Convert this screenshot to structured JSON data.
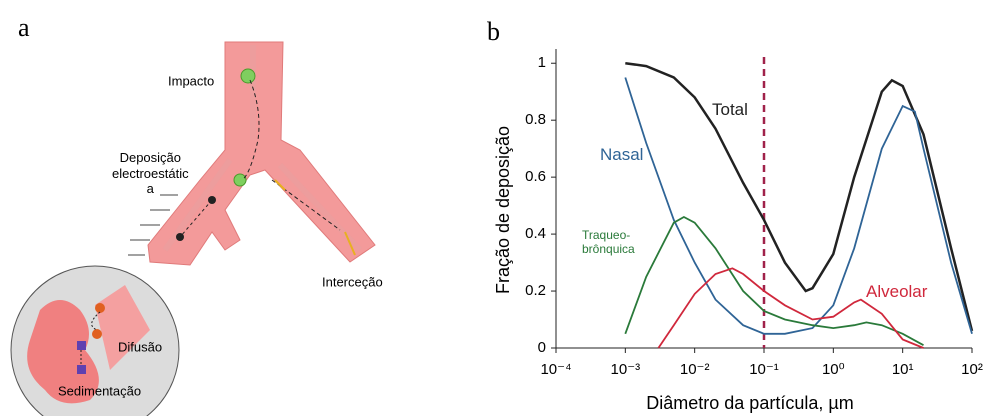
{
  "panel_a": {
    "letter": "a",
    "labels": [
      "Impacto",
      "Deposição\nelectroestátic\na",
      "Interceção",
      "Difusão",
      "Sedimentação"
    ]
  },
  "chart_data": {
    "type": "line",
    "letter": "b",
    "x_label": "Diâmetro da partícula, µm",
    "y_label": "Fração de deposição",
    "x_scale": "log",
    "xlim": [
      0.0001,
      100
    ],
    "ylim": [
      0,
      1.05
    ],
    "xticks": [
      {
        "value": 0.0001,
        "label": "10⁻⁴"
      },
      {
        "value": 0.001,
        "label": "10⁻³"
      },
      {
        "value": 0.01,
        "label": "10⁻²"
      },
      {
        "value": 0.1,
        "label": "10⁻¹"
      },
      {
        "value": 1,
        "label": "10⁰"
      },
      {
        "value": 10,
        "label": "10¹"
      },
      {
        "value": 100,
        "label": "10²"
      }
    ],
    "yticks": [
      0,
      0.2,
      0.4,
      0.6,
      0.8,
      1
    ],
    "vline": 0.1,
    "vline_color": "#a0224a",
    "series": [
      {
        "name": "Total",
        "color": "#222222",
        "x": [
          0.001,
          0.002,
          0.005,
          0.01,
          0.02,
          0.05,
          0.1,
          0.2,
          0.4,
          0.5,
          1,
          2,
          5,
          7,
          10,
          20,
          50,
          100
        ],
        "values": [
          1.0,
          0.99,
          0.95,
          0.88,
          0.77,
          0.58,
          0.45,
          0.3,
          0.2,
          0.21,
          0.33,
          0.6,
          0.9,
          0.94,
          0.92,
          0.75,
          0.35,
          0.06
        ]
      },
      {
        "name": "Nasal",
        "color": "#2f6496",
        "x": [
          0.001,
          0.002,
          0.005,
          0.01,
          0.02,
          0.05,
          0.1,
          0.2,
          0.5,
          1,
          2,
          5,
          10,
          15,
          20,
          50,
          100
        ],
        "values": [
          0.95,
          0.72,
          0.45,
          0.3,
          0.17,
          0.08,
          0.05,
          0.05,
          0.07,
          0.15,
          0.35,
          0.7,
          0.85,
          0.83,
          0.7,
          0.3,
          0.05
        ]
      },
      {
        "name": "Traqueo-\nbrônquica",
        "color": "#2a7a3a",
        "x": [
          0.001,
          0.002,
          0.005,
          0.007,
          0.01,
          0.02,
          0.05,
          0.1,
          0.2,
          0.5,
          1,
          2,
          3,
          5,
          10,
          20
        ],
        "values": [
          0.05,
          0.25,
          0.44,
          0.46,
          0.44,
          0.35,
          0.2,
          0.13,
          0.1,
          0.08,
          0.07,
          0.08,
          0.09,
          0.08,
          0.05,
          0.01
        ]
      },
      {
        "name": "Alveolar",
        "color": "#d0283c",
        "x": [
          0.003,
          0.005,
          0.01,
          0.02,
          0.035,
          0.05,
          0.1,
          0.2,
          0.5,
          1,
          2,
          2.5,
          5,
          10,
          20
        ],
        "values": [
          0,
          0.08,
          0.19,
          0.26,
          0.28,
          0.26,
          0.2,
          0.15,
          0.1,
          0.11,
          0.16,
          0.17,
          0.12,
          0.03,
          0
        ]
      }
    ]
  }
}
